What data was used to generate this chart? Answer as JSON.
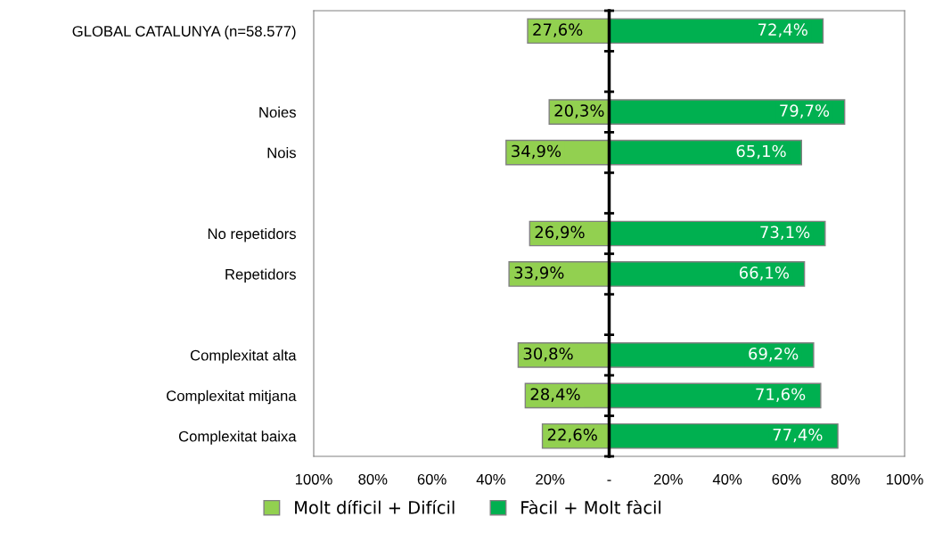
{
  "chart_data": {
    "type": "bar",
    "orientation": "horizontal",
    "ref_lines": [
      {
        "axis": "x",
        "value": 0,
        "color": "#000000"
      }
    ],
    "categories": [
      "GLOBAL CATALUNYA (n=58.577)",
      null,
      "Noies",
      "Nois",
      null,
      "No repetidors",
      "Repetidors",
      null,
      "Complexitat alta",
      "Complexitat mitjana",
      "Complexitat baixa"
    ],
    "series": [
      {
        "name": "Molt díficil + Difícil",
        "color": "#92d050",
        "values": [
          27.6,
          null,
          20.3,
          34.9,
          null,
          26.9,
          33.9,
          null,
          30.8,
          28.4,
          22.6
        ],
        "base": [
          -27.6,
          null,
          -20.3,
          -34.9,
          null,
          -26.9,
          -33.9,
          null,
          -30.8,
          -28.4,
          -22.6
        ],
        "value_labels": [
          "27,6%",
          null,
          "20,3%",
          "34,9%",
          null,
          "26,9%",
          "33,9%",
          null,
          "30,8%",
          "28,4%",
          "22,6%"
        ]
      },
      {
        "name": "Fàcil + Molt fàcil",
        "color": "#00b050",
        "values": [
          72.4,
          null,
          79.7,
          65.1,
          null,
          73.1,
          66.1,
          null,
          69.2,
          71.6,
          77.4
        ],
        "value_labels": [
          "72,4%",
          null,
          "79,7%",
          "65,1%",
          null,
          "73,1%",
          "66,1%",
          null,
          "69,2%",
          "71,6%",
          "77,4%"
        ]
      }
    ],
    "xlim": [
      -100,
      100
    ],
    "xticks": [
      {
        "value": -100,
        "label": "100%"
      },
      {
        "value": -80,
        "label": "80%"
      },
      {
        "value": -60,
        "label": "60%"
      },
      {
        "value": -40,
        "label": "40%"
      },
      {
        "value": -20,
        "label": "20%"
      },
      {
        "value": 0,
        "label": "-"
      },
      {
        "value": 20,
        "label": "20%"
      },
      {
        "value": 40,
        "label": "40%"
      },
      {
        "value": 60,
        "label": "60%"
      },
      {
        "value": 80,
        "label": "80%"
      },
      {
        "value": 100,
        "label": "100%"
      }
    ],
    "grid": false,
    "legend": "bottom"
  }
}
